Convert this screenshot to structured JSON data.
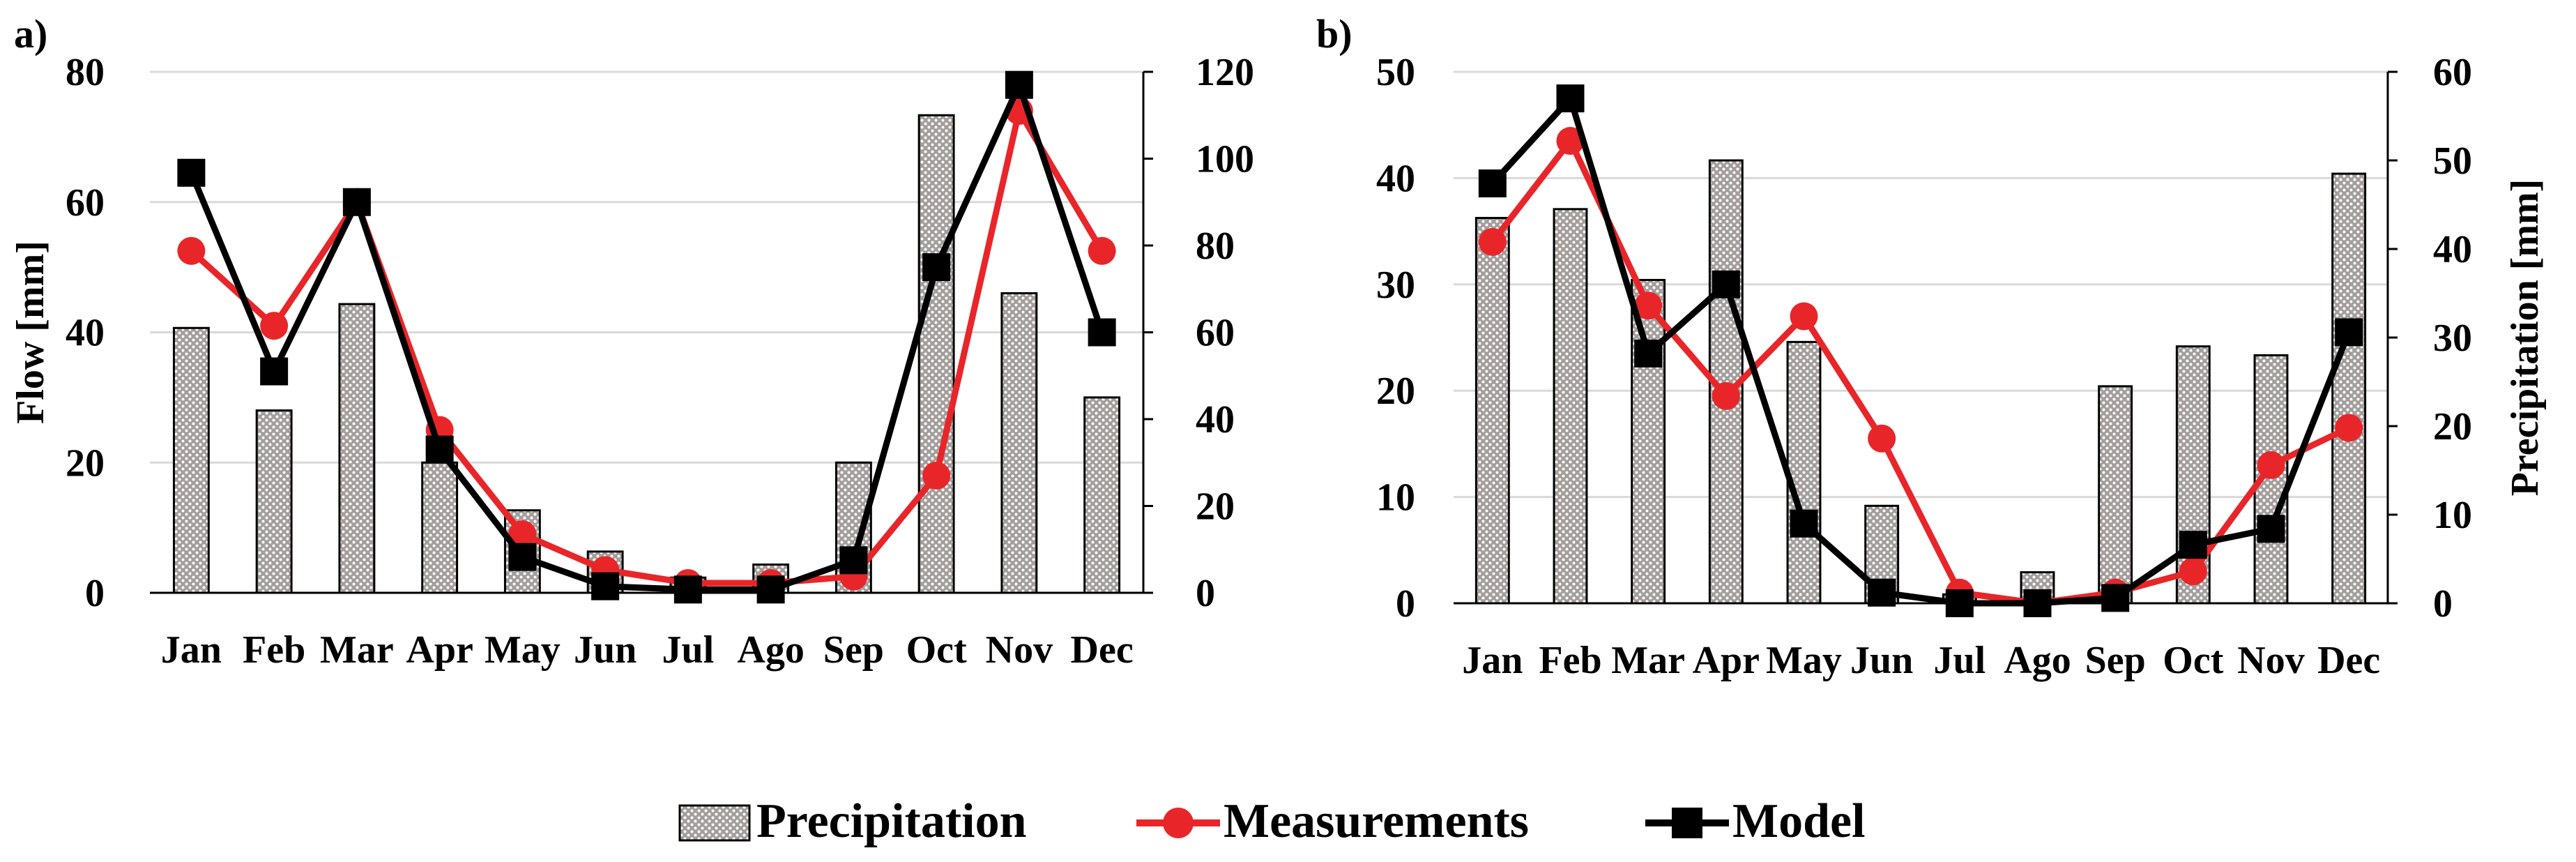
{
  "figure": {
    "legend": {
      "entries": [
        "Precipitation",
        "Measurements",
        "Model"
      ],
      "placement": "bottom-center"
    }
  },
  "colors": {
    "measurements": "#e8262a",
    "model": "#000000",
    "bar_fill": "#a39e9c",
    "bar_dot": "#ffffff",
    "grid": "#d9d9d9",
    "axis": "#000000"
  },
  "chart_data": [
    {
      "panel_label": "a)",
      "type": "bar+line",
      "categories": [
        "Jan",
        "Feb",
        "Mar",
        "Apr",
        "May",
        "Jun",
        "Jul",
        "Ago",
        "Sep",
        "Oct",
        "Nov",
        "Dec"
      ],
      "left_axis": {
        "label": "Flow [mm]",
        "range": [
          0,
          80
        ],
        "step": 20,
        "ticks": [
          "0",
          "20",
          "40",
          "60",
          "80"
        ]
      },
      "right_axis": {
        "label": "",
        "range": [
          0,
          120
        ],
        "step": 20,
        "ticks": [
          "0",
          "20",
          "40",
          "60",
          "80",
          "100",
          "120"
        ]
      },
      "grid": true,
      "series": [
        {
          "name": "Precipitation",
          "kind": "bar",
          "axis": "right",
          "values": [
            61,
            42,
            66.5,
            30,
            19,
            9.5,
            3.5,
            6.5,
            30,
            110,
            69,
            45
          ]
        },
        {
          "name": "Measurements",
          "kind": "line",
          "axis": "left",
          "values": [
            52.5,
            41,
            60,
            25,
            9,
            3.5,
            1.5,
            1.5,
            2.5,
            18,
            74,
            52.5
          ]
        },
        {
          "name": "Model",
          "kind": "line",
          "axis": "left",
          "values": [
            64.5,
            34,
            60,
            22,
            5.5,
            1,
            0.5,
            0.5,
            5,
            50,
            78,
            40
          ]
        }
      ]
    },
    {
      "panel_label": "b)",
      "type": "bar+line",
      "categories": [
        "Jan",
        "Feb",
        "Mar",
        "Apr",
        "May",
        "Jun",
        "Jul",
        "Ago",
        "Sep",
        "Oct",
        "Nov",
        "Dec"
      ],
      "left_axis": {
        "label": "",
        "range": [
          0,
          50
        ],
        "step": 10,
        "ticks": [
          "0",
          "10",
          "20",
          "30",
          "40",
          "50"
        ]
      },
      "right_axis": {
        "label": "Precipitation [mm]",
        "range": [
          0,
          60
        ],
        "step": 10,
        "ticks": [
          "0",
          "10",
          "20",
          "30",
          "40",
          "50",
          "60"
        ]
      },
      "grid": true,
      "series": [
        {
          "name": "Precipitation",
          "kind": "bar",
          "axis": "right",
          "values": [
            43.5,
            44.5,
            36.5,
            50,
            29.5,
            11,
            1,
            3.5,
            24.5,
            29,
            28,
            48.5
          ]
        },
        {
          "name": "Measurements",
          "kind": "line",
          "axis": "left",
          "values": [
            34,
            43.5,
            28,
            19.5,
            27,
            15.5,
            1,
            0,
            1,
            3,
            13,
            16.5
          ]
        },
        {
          "name": "Model",
          "kind": "line",
          "axis": "left",
          "values": [
            39.5,
            47.5,
            23.5,
            30,
            7.5,
            1,
            0,
            0,
            0.5,
            5.5,
            7,
            25.5
          ]
        }
      ]
    }
  ]
}
